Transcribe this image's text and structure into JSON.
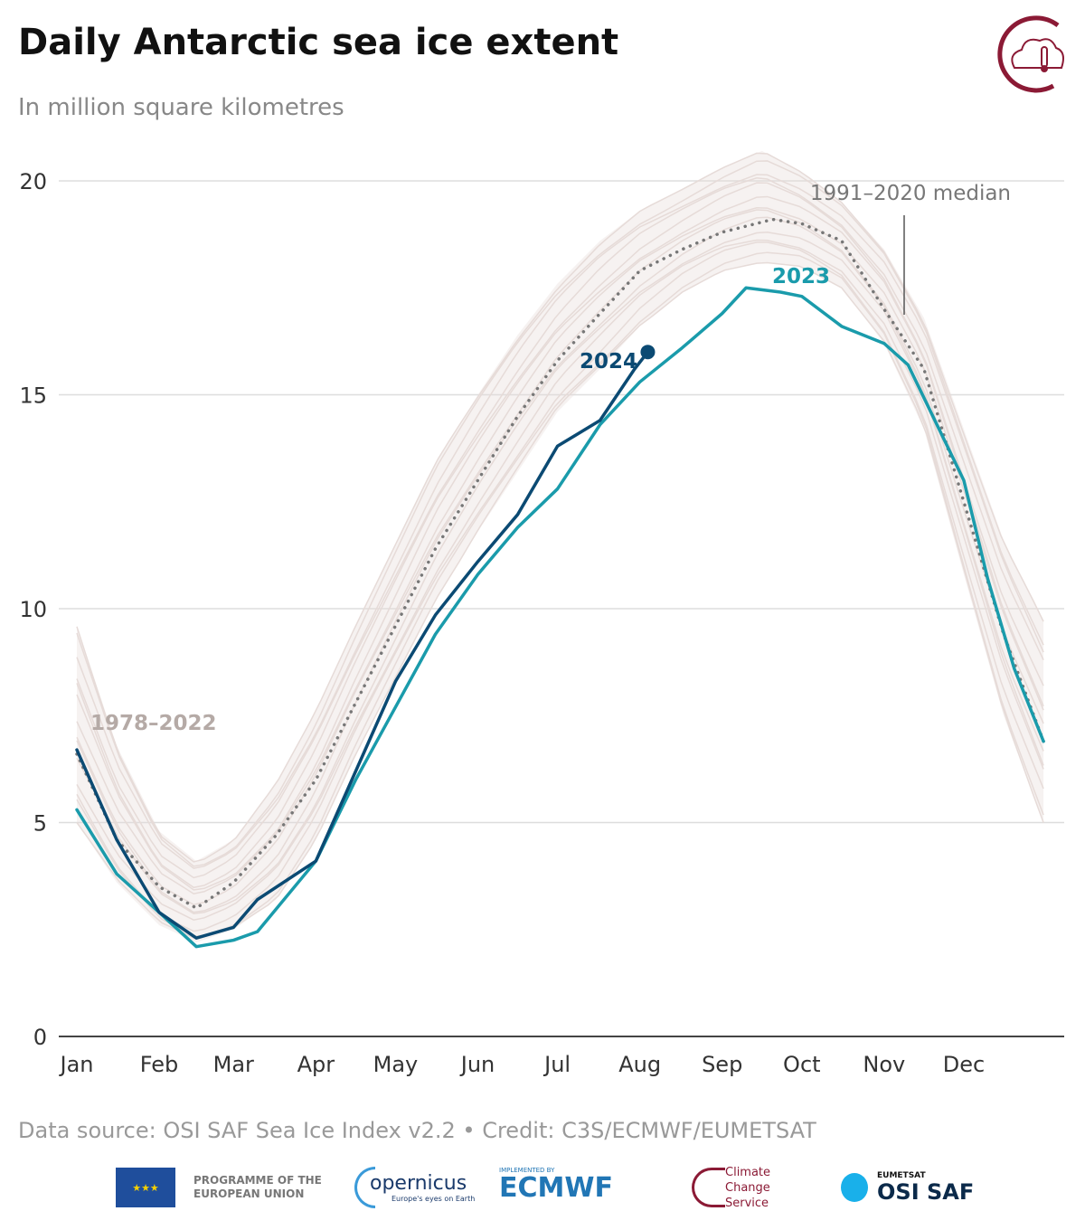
{
  "header": {
    "title": "Daily Antarctic sea ice extent",
    "subtitle": "In million square kilometres"
  },
  "footer": {
    "source": "Data source: OSI SAF Sea Ice Index v2.2 • Credit: C3S/ECMWF/EUMETSAT",
    "logos": {
      "eu": "PROGRAMME OF THE EUROPEAN UNION",
      "copernicus": "opernicus",
      "copernicus_tag": "Europe's eyes on Earth",
      "ecmwf_tag": "IMPLEMENTED BY",
      "ecmwf": "ECMWF",
      "c3s": "Climate Change Service",
      "eumetsat": "EUMETSAT",
      "osisaf": "OSI SAF"
    }
  },
  "colors": {
    "y2023": "#1a9bab",
    "y2024": "#0b4a73",
    "median": "#777777",
    "historical": "#e6dbd8",
    "brand": "#8b1a35"
  },
  "chart_data": {
    "type": "line",
    "ylim": [
      0,
      20
    ],
    "yticks": [
      0,
      5,
      10,
      15,
      20
    ],
    "xticks": [
      "Jan",
      "Feb",
      "Mar",
      "Apr",
      "May",
      "Jun",
      "Jul",
      "Aug",
      "Sep",
      "Oct",
      "Nov",
      "Dec"
    ],
    "xtick_days": [
      0,
      31,
      59,
      90,
      120,
      151,
      181,
      212,
      243,
      273,
      304,
      334
    ],
    "grid": true,
    "annotations": {
      "historical": "1978–2022",
      "median": "1991–2020 median",
      "y2023": "2023",
      "y2024": "2024"
    },
    "historical_band": {
      "days": [
        0,
        15,
        31,
        45,
        59,
        75,
        90,
        105,
        120,
        135,
        151,
        166,
        181,
        197,
        212,
        228,
        243,
        258,
        273,
        288,
        304,
        319,
        334,
        349,
        364
      ],
      "low": [
        5.0,
        3.6,
        2.6,
        2.2,
        2.5,
        3.2,
        4.6,
        6.6,
        8.4,
        10.2,
        11.8,
        13.2,
        14.6,
        15.6,
        16.6,
        17.4,
        17.9,
        18.1,
        18.0,
        17.5,
        16.2,
        14.2,
        10.8,
        7.5,
        5.0
      ],
      "high": [
        9.6,
        6.8,
        4.8,
        4.1,
        4.6,
        5.9,
        7.6,
        9.6,
        11.5,
        13.4,
        15.0,
        16.4,
        17.6,
        18.6,
        19.3,
        19.8,
        20.3,
        20.7,
        20.2,
        19.5,
        18.4,
        16.8,
        14.2,
        11.6,
        9.7
      ]
    },
    "series": [
      {
        "name": "1991–2020 median",
        "days": [
          0,
          15,
          31,
          45,
          59,
          75,
          90,
          105,
          120,
          135,
          151,
          166,
          181,
          197,
          212,
          228,
          243,
          262,
          273,
          288,
          304,
          319,
          334,
          349,
          364
        ],
        "values": [
          6.6,
          4.6,
          3.5,
          3.0,
          3.6,
          4.7,
          6.0,
          7.8,
          9.6,
          11.4,
          13.0,
          14.5,
          15.8,
          16.9,
          17.9,
          18.4,
          18.8,
          19.1,
          19.0,
          18.6,
          17.0,
          15.6,
          12.5,
          9.4,
          6.9
        ]
      },
      {
        "name": "2023",
        "days": [
          0,
          15,
          31,
          45,
          59,
          68,
          90,
          105,
          120,
          135,
          151,
          166,
          181,
          197,
          212,
          228,
          243,
          252,
          265,
          273,
          288,
          304,
          313,
          334,
          343,
          353,
          364
        ],
        "values": [
          5.3,
          3.8,
          2.9,
          2.1,
          2.25,
          2.45,
          4.1,
          6.0,
          7.7,
          9.4,
          10.8,
          11.9,
          12.8,
          14.3,
          15.3,
          16.1,
          16.9,
          17.5,
          17.4,
          17.3,
          16.6,
          16.2,
          15.7,
          13.0,
          10.7,
          8.6,
          6.9
        ]
      },
      {
        "name": "2024",
        "days": [
          0,
          15,
          31,
          45,
          59,
          68,
          90,
          105,
          120,
          135,
          151,
          166,
          181,
          197,
          210,
          215
        ],
        "values": [
          6.7,
          4.6,
          2.9,
          2.3,
          2.55,
          3.2,
          4.1,
          6.2,
          8.3,
          9.85,
          11.1,
          12.2,
          13.8,
          14.4,
          15.6,
          16.0
        ]
      }
    ]
  }
}
